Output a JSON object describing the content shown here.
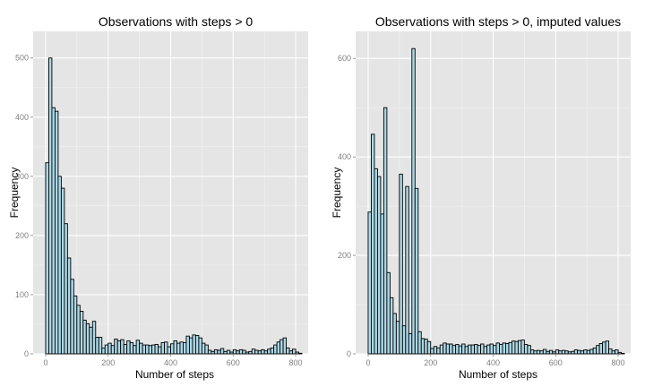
{
  "chart_data": [
    {
      "type": "bar",
      "title": "Observations with steps > 0",
      "xlabel": "Number of steps",
      "ylabel": "Frequency",
      "xlim": [
        -40,
        840
      ],
      "ylim": [
        0,
        545
      ],
      "binwidth": 10,
      "x_ticks": [
        0,
        200,
        400,
        600,
        800
      ],
      "y_ticks": [
        0,
        100,
        200,
        300,
        400,
        500
      ],
      "grid": true,
      "bins": [
        0,
        10,
        20,
        30,
        40,
        50,
        60,
        70,
        80,
        90,
        100,
        110,
        120,
        130,
        140,
        150,
        160,
        170,
        180,
        190,
        200,
        210,
        220,
        230,
        240,
        250,
        260,
        270,
        280,
        290,
        300,
        310,
        320,
        330,
        340,
        350,
        360,
        370,
        380,
        390,
        400,
        410,
        420,
        430,
        440,
        450,
        460,
        470,
        480,
        490,
        500,
        510,
        520,
        530,
        540,
        550,
        560,
        570,
        580,
        590,
        600,
        610,
        620,
        630,
        640,
        650,
        660,
        670,
        680,
        690,
        700,
        710,
        720,
        730,
        740,
        750,
        760,
        770,
        780,
        790,
        800,
        810
      ],
      "values": [
        323,
        500,
        416,
        410,
        300,
        280,
        220,
        162,
        126,
        98,
        82,
        72,
        57,
        51,
        45,
        55,
        28,
        28,
        10,
        15,
        18,
        14,
        25,
        22,
        24,
        16,
        22,
        19,
        14,
        23,
        18,
        15,
        15,
        14,
        15,
        16,
        12,
        19,
        20,
        12,
        17,
        22,
        18,
        20,
        19,
        30,
        27,
        32,
        31,
        27,
        18,
        15,
        6,
        4,
        7,
        6,
        9,
        4,
        6,
        3,
        7,
        5,
        7,
        6,
        3,
        4,
        8,
        6,
        5,
        7,
        5,
        8,
        10,
        15,
        20,
        24,
        27,
        10,
        5,
        8,
        3,
        1
      ],
      "color": "#add8e6"
    },
    {
      "type": "bar",
      "title": "Observations with steps > 0, imputed values",
      "xlabel": "Number of steps",
      "ylabel": "Frequency",
      "xlim": [
        -40,
        840
      ],
      "ylim": [
        0,
        655
      ],
      "binwidth": 10,
      "x_ticks": [
        0,
        200,
        400,
        600,
        800
      ],
      "y_ticks": [
        0,
        200,
        400,
        600
      ],
      "grid": true,
      "bins": [
        0,
        10,
        20,
        30,
        40,
        50,
        60,
        70,
        80,
        90,
        100,
        110,
        120,
        130,
        140,
        150,
        160,
        170,
        180,
        190,
        200,
        210,
        220,
        230,
        240,
        250,
        260,
        270,
        280,
        290,
        300,
        310,
        320,
        330,
        340,
        350,
        360,
        370,
        380,
        390,
        400,
        410,
        420,
        430,
        440,
        450,
        460,
        470,
        480,
        490,
        500,
        510,
        520,
        530,
        540,
        550,
        560,
        570,
        580,
        590,
        600,
        610,
        620,
        630,
        640,
        650,
        660,
        670,
        680,
        690,
        700,
        710,
        720,
        730,
        740,
        750,
        760,
        770,
        780,
        790,
        800,
        810
      ],
      "values": [
        288,
        446,
        376,
        360,
        284,
        500,
        165,
        114,
        82,
        66,
        365,
        57,
        340,
        41,
        620,
        336,
        45,
        31,
        30,
        25,
        11,
        15,
        12,
        18,
        22,
        20,
        20,
        17,
        19,
        16,
        20,
        15,
        18,
        18,
        19,
        17,
        20,
        15,
        18,
        20,
        17,
        22,
        19,
        22,
        21,
        23,
        26,
        25,
        27,
        28,
        19,
        17,
        8,
        6,
        7,
        6,
        9,
        5,
        7,
        4,
        8,
        6,
        7,
        6,
        4,
        5,
        8,
        7,
        6,
        8,
        7,
        9,
        12,
        17,
        21,
        24,
        26,
        10,
        6,
        8,
        3,
        1
      ],
      "color": "#add8e6"
    }
  ]
}
